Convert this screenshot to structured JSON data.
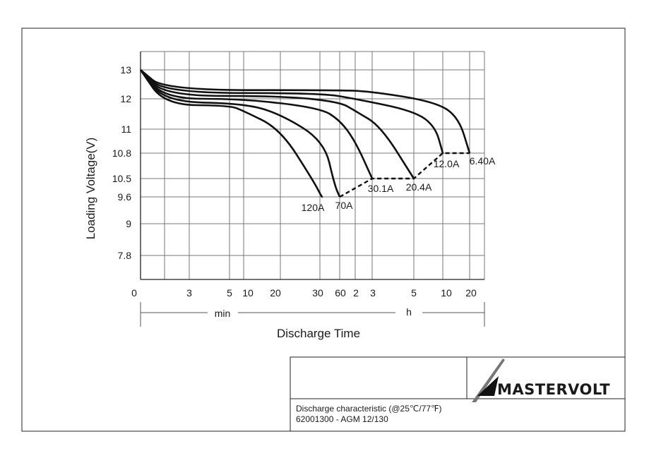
{
  "chart_data": {
    "type": "line",
    "title": "",
    "xlabel": "Discharge Time",
    "ylabel": "Loading  Voltage(V)",
    "x_unit_labels": {
      "minutes": "min",
      "hours": "h"
    },
    "x_ticks": [
      {
        "label": "0",
        "minutes": 0
      },
      {
        "label": "3",
        "minutes": 3
      },
      {
        "label": "5",
        "minutes": 5
      },
      {
        "label": "10",
        "minutes": 10
      },
      {
        "label": "20",
        "minutes": 20
      },
      {
        "label": "30",
        "minutes": 30
      },
      {
        "label": "60",
        "minutes": 60
      },
      {
        "label": "2",
        "minutes": 120
      },
      {
        "label": "3",
        "minutes": 180
      },
      {
        "label": "5",
        "minutes": 300
      },
      {
        "label": "10",
        "minutes": 600
      },
      {
        "label": "20",
        "minutes": 1200
      }
    ],
    "y_ticks": [
      "13",
      "12",
      "11",
      "10.8",
      "10.5",
      "9.6",
      "9",
      "7.8"
    ],
    "x_scale": "log (non-uniform, minutes to hours)",
    "grid": true,
    "series": [
      {
        "name": "120A",
        "x_minutes": [
          0,
          1.5,
          5,
          10,
          20,
          28,
          32,
          33
        ],
        "y": [
          13,
          11.8,
          11.78,
          11.6,
          11.0,
          10.4,
          9.6,
          9.6
        ]
      },
      {
        "name": "70A",
        "x_minutes": [
          0,
          1.5,
          10,
          20,
          35,
          50,
          60
        ],
        "y": [
          13,
          11.9,
          11.85,
          11.5,
          10.9,
          10.2,
          9.6
        ]
      },
      {
        "name": "30.1A",
        "x_minutes": [
          0,
          1.5,
          10,
          30,
          60,
          120,
          180
        ],
        "y": [
          13,
          12.0,
          12.0,
          11.7,
          11.3,
          10.9,
          10.5
        ]
      },
      {
        "name": "20.4A",
        "x_minutes": [
          0,
          1.5,
          20,
          60,
          120,
          200,
          300
        ],
        "y": [
          13,
          12.1,
          12.1,
          11.9,
          11.6,
          11.1,
          10.5
        ]
      },
      {
        "name": "12.0A",
        "x_minutes": [
          0,
          1.5,
          30,
          120,
          300,
          500,
          600
        ],
        "y": [
          13,
          12.2,
          12.2,
          12.0,
          11.6,
          11.1,
          10.8
        ]
      },
      {
        "name": "6.40A",
        "x_minutes": [
          0,
          1.5,
          60,
          180,
          500,
          900,
          1200
        ],
        "y": [
          13,
          12.3,
          12.3,
          12.25,
          11.9,
          11.4,
          10.8
        ]
      }
    ],
    "end_of_discharge_line": {
      "style": "dashed",
      "x_minutes": [
        60,
        180,
        300,
        600,
        1200
      ],
      "y": [
        9.6,
        10.5,
        10.5,
        10.8,
        10.8
      ]
    }
  },
  "title_block": {
    "brand": "MASTERVOLT",
    "caption_line1": "Discharge characteristic (@25℃/77℉)",
    "caption_line2": "62001300 - AGM 12/130"
  }
}
